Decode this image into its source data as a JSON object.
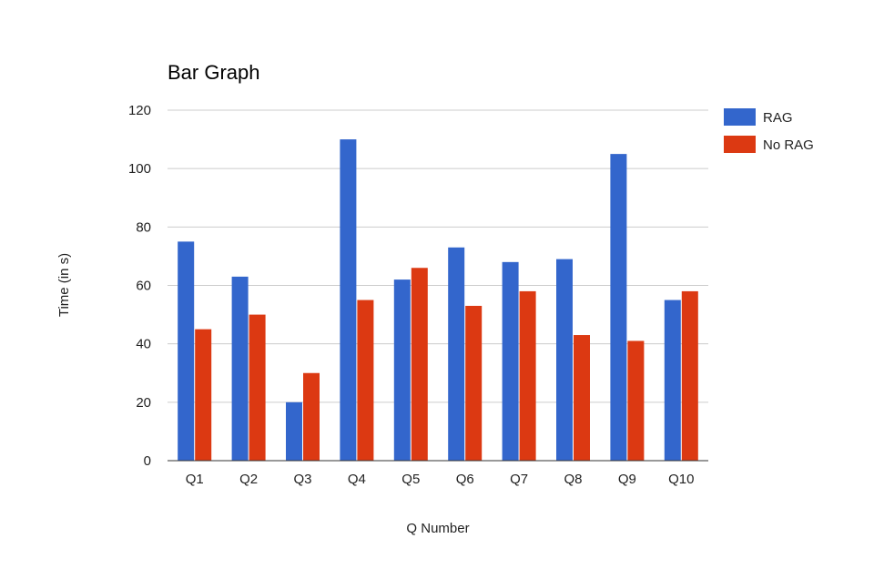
{
  "chart_data": {
    "type": "bar",
    "title": "Bar Graph",
    "xlabel": "Q Number",
    "ylabel": "Time (in s)",
    "categories": [
      "Q1",
      "Q2",
      "Q3",
      "Q4",
      "Q5",
      "Q6",
      "Q7",
      "Q8",
      "Q9",
      "Q10"
    ],
    "series": [
      {
        "name": "RAG",
        "color": "#3366cc",
        "values": [
          75,
          63,
          20,
          110,
          62,
          73,
          68,
          69,
          105,
          55
        ]
      },
      {
        "name": "No RAG",
        "color": "#dc3912",
        "values": [
          45,
          50,
          30,
          55,
          66,
          53,
          58,
          43,
          41,
          58
        ]
      }
    ],
    "ylim": [
      0,
      120
    ],
    "yticks": [
      "0",
      "20",
      "40",
      "60",
      "80",
      "100",
      "120"
    ],
    "grid": true,
    "legend_position": "right"
  }
}
